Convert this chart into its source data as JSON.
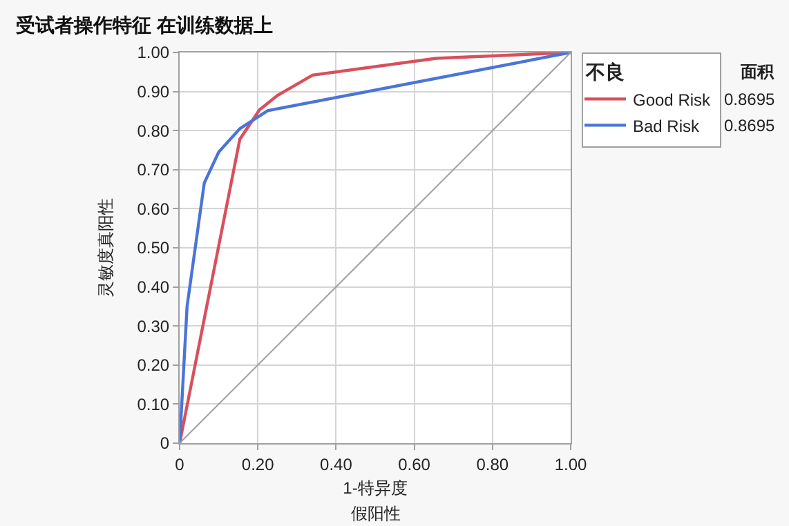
{
  "chart_data": {
    "type": "line",
    "title": "受试者操作特征 在训练数据上",
    "xlabel": "1-特异度",
    "ylabel": "灵敏度真阳性",
    "legend_title": "不良",
    "series": [
      {
        "name": "Good Risk",
        "color": "#d94f5c",
        "x": [
          0,
          0.154,
          0.204,
          0.25,
          0.34,
          0.656,
          1
        ],
        "values": [
          0,
          0.778,
          0.853,
          0.89,
          0.942,
          0.985,
          1
        ]
      },
      {
        "name": "Bad Risk",
        "color": "#4a74d8",
        "x": [
          0,
          0.019,
          0.063,
          0.1,
          0.154,
          0.225,
          1
        ],
        "values": [
          0,
          0.35,
          0.666,
          0.745,
          0.805,
          0.851,
          1
        ]
      },
      {
        "color": "#a0a0a0",
        "x": [
          0,
          1
        ],
        "values": [
          0,
          1
        ]
      }
    ],
    "annotations": [
      "面积",
      "0.8695",
      "0.8695",
      "假阳性"
    ],
    "xlim": [
      0,
      1
    ],
    "ylim": [
      0,
      1
    ],
    "xticks": [
      {
        "value": 0,
        "label": "0"
      },
      {
        "value": 0.2,
        "label": "0.20"
      },
      {
        "value": 0.4,
        "label": "0.40"
      },
      {
        "value": 0.6,
        "label": "0.60"
      },
      {
        "value": 0.8,
        "label": "0.80"
      },
      {
        "value": 1,
        "label": "1.00"
      }
    ],
    "yticks": [
      {
        "value": 0,
        "label": "0"
      },
      {
        "value": 0.1,
        "label": "0.10"
      },
      {
        "value": 0.2,
        "label": "0.20"
      },
      {
        "value": 0.3,
        "label": "0.30"
      },
      {
        "value": 0.4,
        "label": "0.40"
      },
      {
        "value": 0.5,
        "label": "0.50"
      },
      {
        "value": 0.6,
        "label": "0.60"
      },
      {
        "value": 0.7,
        "label": "0.70"
      },
      {
        "value": 0.8,
        "label": "0.80"
      },
      {
        "value": 0.9,
        "label": "0.90"
      },
      {
        "value": 1,
        "label": "1.00"
      }
    ],
    "grid": true,
    "legend": "top right",
    "marker": "none",
    "line_style": "solid"
  }
}
